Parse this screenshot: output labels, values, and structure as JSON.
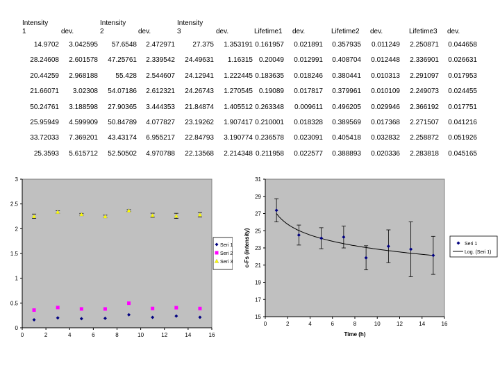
{
  "table": {
    "headers": [
      [
        "Intensity",
        "1"
      ],
      [
        "dev."
      ],
      [
        "Intensity",
        "2"
      ],
      [
        "dev."
      ],
      [
        "Intensity",
        "3"
      ],
      [
        "dev."
      ],
      [
        "Lifetime1"
      ],
      [
        "dev."
      ],
      [
        "Lifetime2"
      ],
      [
        "dev."
      ],
      [
        "Lifetime3"
      ],
      [
        "dev."
      ]
    ],
    "rows": [
      [
        "14.9702",
        "3.042595",
        "57.6548",
        "2.472971",
        "27.375",
        "1.353191",
        "0.161957",
        "0.021891",
        "0.357935",
        "0.011249",
        "2.250871",
        "0.044658"
      ],
      [
        "28.24608",
        "2.601578",
        "47.25761",
        "2.339542",
        "24.49631",
        "1.16315",
        "0.20049",
        "0.012991",
        "0.408704",
        "0.012448",
        "2.336901",
        "0.026631"
      ],
      [
        "20.44259",
        "2.968188",
        "55.428",
        "2.544607",
        "24.12941",
        "1.222445",
        "0.183635",
        "0.018246",
        "0.380441",
        "0.010313",
        "2.291097",
        "0.017953"
      ],
      [
        "21.66071",
        "3.02308",
        "54.07186",
        "2.612321",
        "24.26743",
        "1.270545",
        "0.19089",
        "0.017817",
        "0.379961",
        "0.010109",
        "2.249073",
        "0.024455"
      ],
      [
        "50.24761",
        "3.188598",
        "27.90365",
        "3.444353",
        "21.84874",
        "1.405512",
        "0.263348",
        "0.009611",
        "0.496205",
        "0.029946",
        "2.366192",
        "0.017751"
      ],
      [
        "25.95949",
        "4.599909",
        "50.84789",
        "4.077827",
        "23.19262",
        "1.907417",
        "0.210001",
        "0.018328",
        "0.389569",
        "0.017368",
        "2.271507",
        "0.041216"
      ],
      [
        "33.72033",
        "7.369201",
        "43.43174",
        "6.955217",
        "22.84793",
        "3.190774",
        "0.236578",
        "0.023091",
        "0.405418",
        "0.032832",
        "2.258872",
        "0.051926"
      ],
      [
        "25.3593",
        "5.615712",
        "52.50502",
        "4.970788",
        "22.13568",
        "2.214348",
        "0.211958",
        "0.022577",
        "0.388893",
        "0.020336",
        "2.283818",
        "0.045165"
      ]
    ]
  },
  "chart_data": [
    {
      "type": "scatter",
      "title": "",
      "xlabel": "",
      "ylabel": "",
      "xlim": [
        0,
        16
      ],
      "ylim": [
        0,
        3
      ],
      "xticks": [
        "0",
        "2",
        "4",
        "6",
        "8",
        "10",
        "12",
        "14",
        "16"
      ],
      "yticks": [
        "0",
        "0.5",
        "1",
        "1.5",
        "2",
        "2.5",
        "3"
      ],
      "legend_position": "right",
      "series": [
        {
          "name": "Seri 1",
          "color": "#000080",
          "marker": "diamond",
          "x": [
            1,
            3,
            5,
            7,
            9,
            11,
            13,
            15
          ],
          "y": [
            0.161957,
            0.20049,
            0.183635,
            0.19089,
            0.263348,
            0.210001,
            0.236578,
            0.211958
          ]
        },
        {
          "name": "Seri 2",
          "color": "#ff00ff",
          "marker": "square",
          "x": [
            1,
            3,
            5,
            7,
            9,
            11,
            13,
            15
          ],
          "y": [
            0.357935,
            0.408704,
            0.380441,
            0.379961,
            0.496205,
            0.389569,
            0.405418,
            0.388893
          ]
        },
        {
          "name": "Seri 3",
          "color": "#ffff00",
          "marker": "triangle",
          "x": [
            1,
            3,
            5,
            7,
            9,
            11,
            13,
            15
          ],
          "y": [
            2.250871,
            2.336901,
            2.291097,
            2.249073,
            2.366192,
            2.271507,
            2.258872,
            2.283818
          ],
          "err": [
            0.044658,
            0.026631,
            0.017953,
            0.024455,
            0.017751,
            0.041216,
            0.051926,
            0.045165
          ]
        }
      ]
    },
    {
      "type": "scatter",
      "title": "",
      "xlabel": "Time (h)",
      "ylabel": "c-Fs (intensity)",
      "xlim": [
        0,
        16
      ],
      "ylim": [
        15,
        31
      ],
      "xticks": [
        "0",
        "2",
        "4",
        "6",
        "8",
        "10",
        "12",
        "14",
        "16"
      ],
      "yticks": [
        "15",
        "17",
        "19",
        "21",
        "23",
        "25",
        "27",
        "29",
        "31"
      ],
      "legend_position": "right",
      "series": [
        {
          "name": "Seri 1",
          "color": "#000080",
          "marker": "diamond",
          "x": [
            1,
            3,
            5,
            7,
            9,
            11,
            13,
            15
          ],
          "y": [
            27.375,
            24.49631,
            24.12941,
            24.26743,
            21.84874,
            23.19262,
            22.84793,
            22.13568
          ],
          "err": [
            1.353191,
            1.16315,
            1.222445,
            1.270545,
            1.405512,
            1.907417,
            3.190774,
            2.214348
          ]
        }
      ],
      "trendline": {
        "name": "Log. (Seri 1)",
        "type": "logarithmic",
        "intercept": 27.0,
        "slope": -1.8
      }
    }
  ]
}
